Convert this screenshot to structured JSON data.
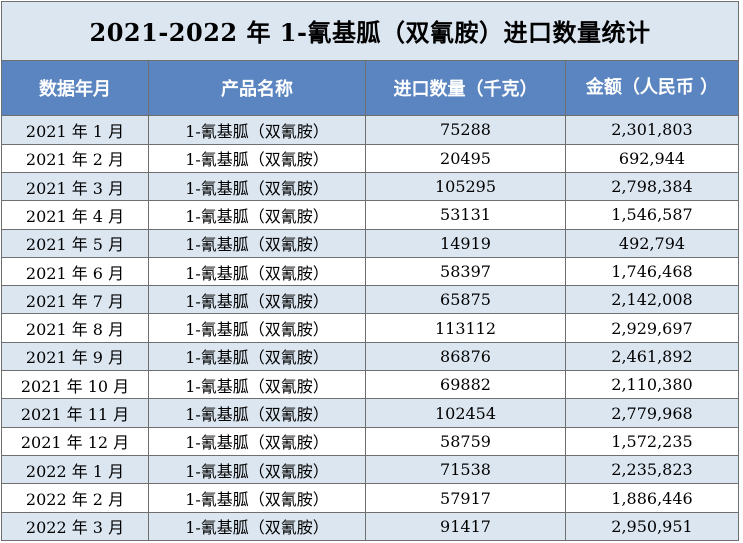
{
  "table": {
    "title": "2021-2022 年 1-氰基胍（双氰胺）进口数量统计",
    "headers": [
      "数据年月",
      "产品名称",
      "进口数量（千克）",
      "金额（人民币 ）"
    ],
    "rows": [
      [
        "2021 年 1 月",
        "1-氰基胍（双氰胺）",
        "75288",
        "2,301,803"
      ],
      [
        "2021 年 2 月",
        "1-氰基胍（双氰胺）",
        "20495",
        "692,944"
      ],
      [
        "2021 年 3 月",
        "1-氰基胍（双氰胺）",
        "105295",
        "2,798,384"
      ],
      [
        "2021 年 4 月",
        "1-氰基胍（双氰胺）",
        "53131",
        "1,546,587"
      ],
      [
        "2021 年 5 月",
        "1-氰基胍（双氰胺）",
        "14919",
        "492,794"
      ],
      [
        "2021 年 6 月",
        "1-氰基胍（双氰胺）",
        "58397",
        "1,746,468"
      ],
      [
        "2021 年 7 月",
        "1-氰基胍（双氰胺）",
        "65875",
        "2,142,008"
      ],
      [
        "2021 年 8 月",
        "1-氰基胍（双氰胺）",
        "113112",
        "2,929,697"
      ],
      [
        "2021 年 9 月",
        "1-氰基胍（双氰胺）",
        "86876",
        "2,461,892"
      ],
      [
        "2021 年 10 月",
        "1-氰基胍（双氰胺）",
        "69882",
        "2,110,380"
      ],
      [
        "2021 年 11 月",
        "1-氰基胍（双氰胺）",
        "102454",
        "2,779,968"
      ],
      [
        "2021 年 12 月",
        "1-氰基胍（双氰胺）",
        "58759",
        "1,572,235"
      ],
      [
        "2022 年 1 月",
        "1-氰基胍（双氰胺）",
        "71538",
        "2,235,823"
      ],
      [
        "2022 年 2 月",
        "1-氰基胍（双氰胺）",
        "57917",
        "1,886,446"
      ],
      [
        "2022 年 3 月",
        "1-氰基胍（双氰胺）",
        "91417",
        "2,950,951"
      ]
    ]
  },
  "colors": {
    "header_bg": "#5b85c0",
    "band_bg": "#dce6f1",
    "row_alt_bg": "#ffffff",
    "border": "#6f6f6f"
  }
}
